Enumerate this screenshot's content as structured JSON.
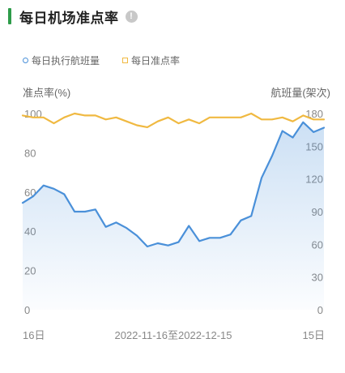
{
  "header": {
    "title": "每日机场准点率",
    "info_icon": "!"
  },
  "legend": {
    "items": [
      {
        "label": "每日执行航班量",
        "color": "#4a90d9",
        "marker": "circle"
      },
      {
        "label": "每日准点率",
        "color": "#f0b941",
        "marker": "square"
      }
    ]
  },
  "chart_data": {
    "type": "line",
    "ylabel_left": "准点率(%)",
    "ylabel_right": "航班量(架次)",
    "y_left_ticks": [
      "0",
      "20",
      "40",
      "60",
      "80",
      "100"
    ],
    "y_left_lim": [
      0,
      100
    ],
    "y_right_ticks": [
      "0",
      "30",
      "60",
      "90",
      "120",
      "150",
      "180"
    ],
    "y_right_lim": [
      0,
      180
    ],
    "x_labels": {
      "start": "16日",
      "range": "2022-11-16至2022-12-15",
      "end": "15日"
    },
    "grid": false,
    "series": [
      {
        "name": "每日执行航班量",
        "axis": "right",
        "color": "#4a90d9",
        "area": true,
        "values": [
          98,
          104,
          114,
          111,
          106,
          90,
          90,
          92,
          76,
          80,
          75,
          68,
          58,
          61,
          59,
          62,
          77,
          63,
          66,
          66,
          69,
          82,
          86,
          121,
          141,
          164,
          158,
          172,
          163,
          167
        ]
      },
      {
        "name": "每日准点率",
        "axis": "left",
        "color": "#f0b941",
        "area": false,
        "values": [
          99,
          98,
          98,
          95,
          98,
          100,
          99,
          99,
          97,
          98,
          96,
          94,
          93,
          96,
          98,
          95,
          97,
          95,
          98,
          98,
          98,
          98,
          100,
          97,
          97,
          98,
          96,
          99,
          97,
          97
        ]
      }
    ]
  }
}
